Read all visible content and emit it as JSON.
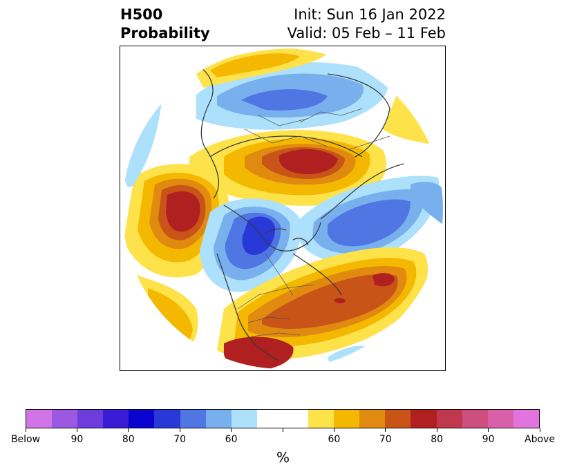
{
  "title": {
    "line1": "H500",
    "line2": "Probability"
  },
  "info": {
    "init": "Init: Sun 16 Jan 2022",
    "valid": "Valid: 05 Feb – 11 Feb"
  },
  "colorbar": {
    "unit": "%",
    "colors": [
      "#d175e6",
      "#9c58e0",
      "#6f3cdc",
      "#3a1bd6",
      "#0b03d0",
      "#2839d8",
      "#4f76e2",
      "#78b0ee",
      "#ade0fb",
      "#ffffff",
      "#ffffff",
      "#fde24a",
      "#f4b800",
      "#e18a10",
      "#c85418",
      "#b02020",
      "#c0384e",
      "#cc4f7f",
      "#d860ab",
      "#e474dd"
    ],
    "tick_labels": [
      "Below",
      "90",
      "80",
      "70",
      "60",
      "",
      "60",
      "70",
      "80",
      "90",
      "Above"
    ]
  }
}
